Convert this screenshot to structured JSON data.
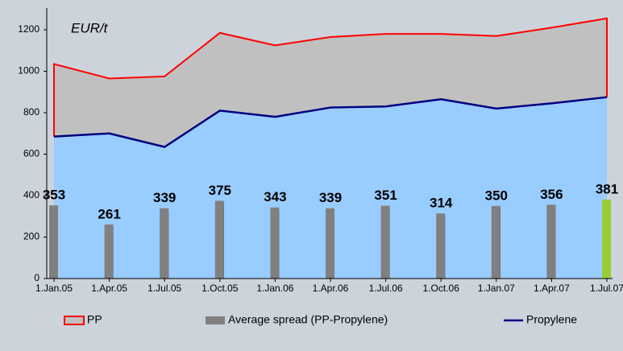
{
  "chart_data": {
    "type": "combo",
    "annotation": "EUR/t",
    "categories": [
      "1.Jan.05",
      "1.Apr.05",
      "1.Jul.05",
      "1.Oct.05",
      "1.Jan.06",
      "1.Apr.06",
      "1.Jul.06",
      "1.Oct.06",
      "1.Jan.07",
      "1.Apr.07",
      "1.Jul.07"
    ],
    "series": [
      {
        "name": "PP",
        "type": "area",
        "color": "#ff0000",
        "fill": "#c0c0c0",
        "values": [
          1035,
          965,
          975,
          1185,
          1125,
          1165,
          1180,
          1180,
          1170,
          1210,
          1255
        ]
      },
      {
        "name": "Average spread (PP-Propylene)",
        "type": "bar",
        "color": "#808080",
        "colors": [
          "#808080",
          "#808080",
          "#808080",
          "#808080",
          "#808080",
          "#808080",
          "#808080",
          "#808080",
          "#808080",
          "#808080",
          "#99cc33"
        ],
        "values": [
          353,
          261,
          339,
          375,
          343,
          339,
          351,
          314,
          350,
          356,
          381
        ]
      },
      {
        "name": "Propylene",
        "type": "line",
        "color": "#000080",
        "fill": "#99ccff",
        "values": [
          685,
          700,
          635,
          810,
          780,
          825,
          830,
          865,
          820,
          845,
          875
        ]
      }
    ],
    "ylim": [
      0,
      1300
    ],
    "yticks": [
      0,
      200,
      400,
      600,
      800,
      1000,
      1200
    ]
  }
}
